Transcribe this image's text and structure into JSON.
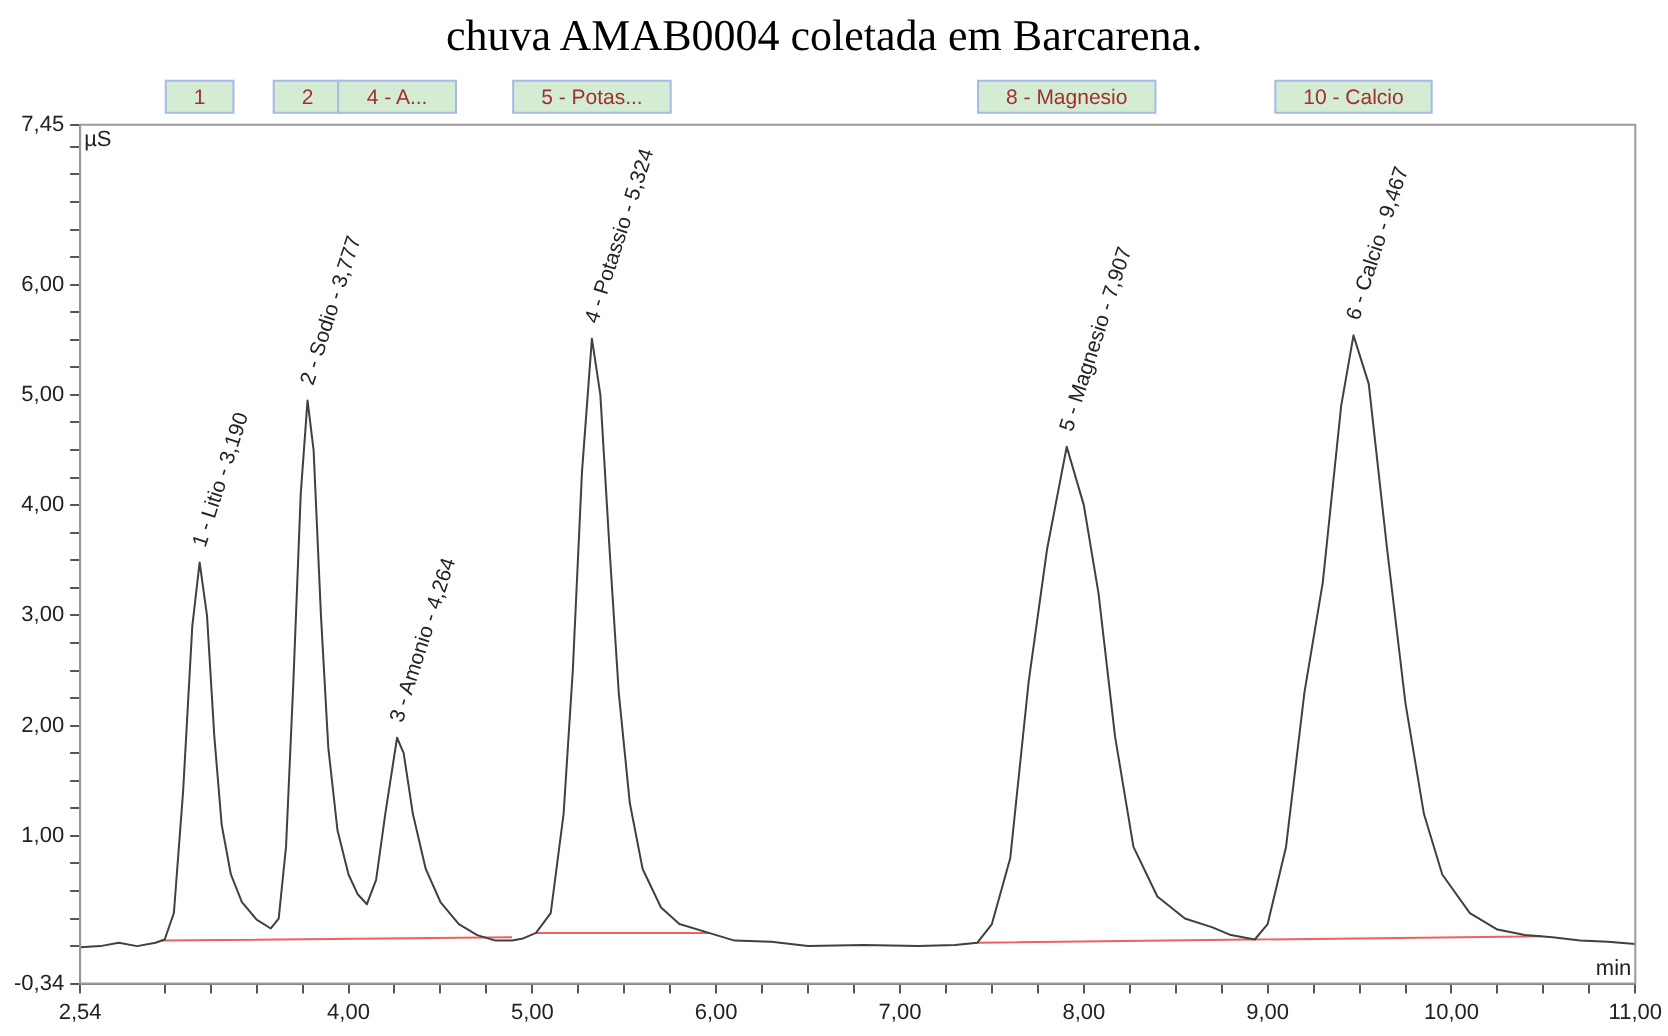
{
  "chart_data": {
    "type": "line",
    "title": "chuva AMAB0004 coletada em Barcarena.",
    "xlabel": "min",
    "ylabel": "µS",
    "marker": "none",
    "line_style": "solid",
    "grid": false,
    "legend": false,
    "xlim": [
      2.54,
      11
    ],
    "ylim": [
      -0.34,
      7.45
    ],
    "xticks": [
      {
        "value": 2.54,
        "label": "2,54"
      },
      {
        "value": 3,
        "label": null
      },
      {
        "value": 3.25,
        "label": null
      },
      {
        "value": 3.5,
        "label": null
      },
      {
        "value": 3.75,
        "label": null
      },
      {
        "value": 4,
        "label": "4,00"
      },
      {
        "value": 4.25,
        "label": null
      },
      {
        "value": 4.5,
        "label": null
      },
      {
        "value": 4.75,
        "label": null
      },
      {
        "value": 5,
        "label": "5,00"
      },
      {
        "value": 5.25,
        "label": null
      },
      {
        "value": 5.5,
        "label": null
      },
      {
        "value": 5.75,
        "label": null
      },
      {
        "value": 6,
        "label": "6,00"
      },
      {
        "value": 6.25,
        "label": null
      },
      {
        "value": 6.5,
        "label": null
      },
      {
        "value": 6.75,
        "label": null
      },
      {
        "value": 7,
        "label": "7,00"
      },
      {
        "value": 7.25,
        "label": null
      },
      {
        "value": 7.5,
        "label": null
      },
      {
        "value": 7.75,
        "label": null
      },
      {
        "value": 8,
        "label": "8,00"
      },
      {
        "value": 8.25,
        "label": null
      },
      {
        "value": 8.5,
        "label": null
      },
      {
        "value": 8.75,
        "label": null
      },
      {
        "value": 9,
        "label": "9,00"
      },
      {
        "value": 9.25,
        "label": null
      },
      {
        "value": 9.5,
        "label": null
      },
      {
        "value": 9.75,
        "label": null
      },
      {
        "value": 10,
        "label": "10,00"
      },
      {
        "value": 10.25,
        "label": null
      },
      {
        "value": 10.5,
        "label": null
      },
      {
        "value": 10.75,
        "label": null
      },
      {
        "value": 11,
        "label": "11,00"
      }
    ],
    "yticks": [
      {
        "value": -0.34,
        "label": "-0,34"
      },
      {
        "value": 0,
        "label": null
      },
      {
        "value": 0.25,
        "label": null
      },
      {
        "value": 0.5,
        "label": null
      },
      {
        "value": 0.75,
        "label": null
      },
      {
        "value": 1,
        "label": "1,00"
      },
      {
        "value": 1.25,
        "label": null
      },
      {
        "value": 1.5,
        "label": null
      },
      {
        "value": 1.75,
        "label": null
      },
      {
        "value": 2,
        "label": "2,00"
      },
      {
        "value": 2.25,
        "label": null
      },
      {
        "value": 2.5,
        "label": null
      },
      {
        "value": 2.75,
        "label": null
      },
      {
        "value": 3,
        "label": "3,00"
      },
      {
        "value": 3.25,
        "label": null
      },
      {
        "value": 3.5,
        "label": null
      },
      {
        "value": 3.75,
        "label": null
      },
      {
        "value": 4,
        "label": "4,00"
      },
      {
        "value": 4.25,
        "label": null
      },
      {
        "value": 4.5,
        "label": null
      },
      {
        "value": 4.75,
        "label": null
      },
      {
        "value": 5,
        "label": "5,00"
      },
      {
        "value": 5.25,
        "label": null
      },
      {
        "value": 5.5,
        "label": null
      },
      {
        "value": 5.75,
        "label": null
      },
      {
        "value": 6,
        "label": "6,00"
      },
      {
        "value": 6.25,
        "label": null
      },
      {
        "value": 6.5,
        "label": null
      },
      {
        "value": 6.75,
        "label": null
      },
      {
        "value": 7,
        "label": null
      },
      {
        "value": 7.25,
        "label": null
      },
      {
        "value": 7.45,
        "label": "7,45"
      }
    ],
    "series": [
      {
        "color": "#404040",
        "x": [
          2.54,
          2.65,
          2.75,
          2.85,
          2.95,
          3.0,
          3.05,
          3.1,
          3.15,
          3.19,
          3.23,
          3.27,
          3.31,
          3.36,
          3.42,
          3.5,
          3.577,
          3.62,
          3.66,
          3.7,
          3.74,
          3.777,
          3.81,
          3.85,
          3.89,
          3.94,
          4.0,
          4.05,
          4.1,
          4.15,
          4.2,
          4.264,
          4.3,
          4.35,
          4.42,
          4.5,
          4.6,
          4.7,
          4.8,
          4.89,
          4.95,
          5.02,
          5.1,
          5.17,
          5.22,
          5.27,
          5.324,
          5.37,
          5.42,
          5.47,
          5.53,
          5.6,
          5.7,
          5.8,
          5.96,
          6.1,
          6.3,
          6.5,
          6.8,
          7.1,
          7.3,
          7.42,
          7.5,
          7.6,
          7.7,
          7.8,
          7.907,
          8.0,
          8.08,
          8.17,
          8.27,
          8.4,
          8.55,
          8.7,
          8.8,
          8.93,
          9.0,
          9.1,
          9.2,
          9.3,
          9.4,
          9.467,
          9.55,
          9.65,
          9.75,
          9.85,
          9.95,
          10.1,
          10.25,
          10.4,
          10.55,
          10.7,
          10.85,
          11.0
        ],
        "values": [
          -0.01,
          0.0,
          0.03,
          0.0,
          0.03,
          0.06,
          0.3,
          1.4,
          2.9,
          3.48,
          3.0,
          1.9,
          1.1,
          0.65,
          0.4,
          0.24,
          0.16,
          0.25,
          0.9,
          2.4,
          4.1,
          4.95,
          4.5,
          3.0,
          1.8,
          1.05,
          0.65,
          0.47,
          0.38,
          0.6,
          1.2,
          1.89,
          1.75,
          1.2,
          0.7,
          0.4,
          0.2,
          0.1,
          0.05,
          0.05,
          0.07,
          0.12,
          0.3,
          1.2,
          2.5,
          4.3,
          5.51,
          5.0,
          3.6,
          2.3,
          1.3,
          0.7,
          0.35,
          0.2,
          0.12,
          0.05,
          0.04,
          0.0,
          0.01,
          0.0,
          0.01,
          0.03,
          0.2,
          0.8,
          2.4,
          3.6,
          4.53,
          4.0,
          3.2,
          1.9,
          0.9,
          0.45,
          0.25,
          0.17,
          0.1,
          0.06,
          0.2,
          0.9,
          2.3,
          3.3,
          4.9,
          5.54,
          5.1,
          3.6,
          2.2,
          1.2,
          0.65,
          0.3,
          0.15,
          0.1,
          0.08,
          0.05,
          0.04,
          0.02
        ]
      },
      {
        "color": "#f06060",
        "x": [
          2.98,
          4.89,
          4.95,
          5.02,
          5.96,
          6.5,
          7.42,
          10.49
        ],
        "values": [
          0.05,
          0.08,
          null,
          0.12,
          0.12,
          null,
          0.03,
          0.09
        ]
      }
    ],
    "annotations": [
      {
        "text": "1 - Litio - 3,190",
        "x": 3.19,
        "y": 3.48
      },
      {
        "text": "2 - Sodio - 3,777",
        "x": 3.777,
        "y": 4.95
      },
      {
        "text": "3 - Amonio - 4,264",
        "x": 4.264,
        "y": 1.89
      },
      {
        "text": "4 - Potassio - 5,324",
        "x": 5.324,
        "y": 5.51
      },
      {
        "text": "5 - Magnesio - 7,907",
        "x": 7.907,
        "y": 4.53
      },
      {
        "text": "6 - Calcio - 9,467",
        "x": 9.467,
        "y": 5.54
      },
      "1",
      "2",
      "4 - A...",
      "5 - Potas...",
      "8 - Magnesio",
      "10 - Calcio"
    ]
  }
}
